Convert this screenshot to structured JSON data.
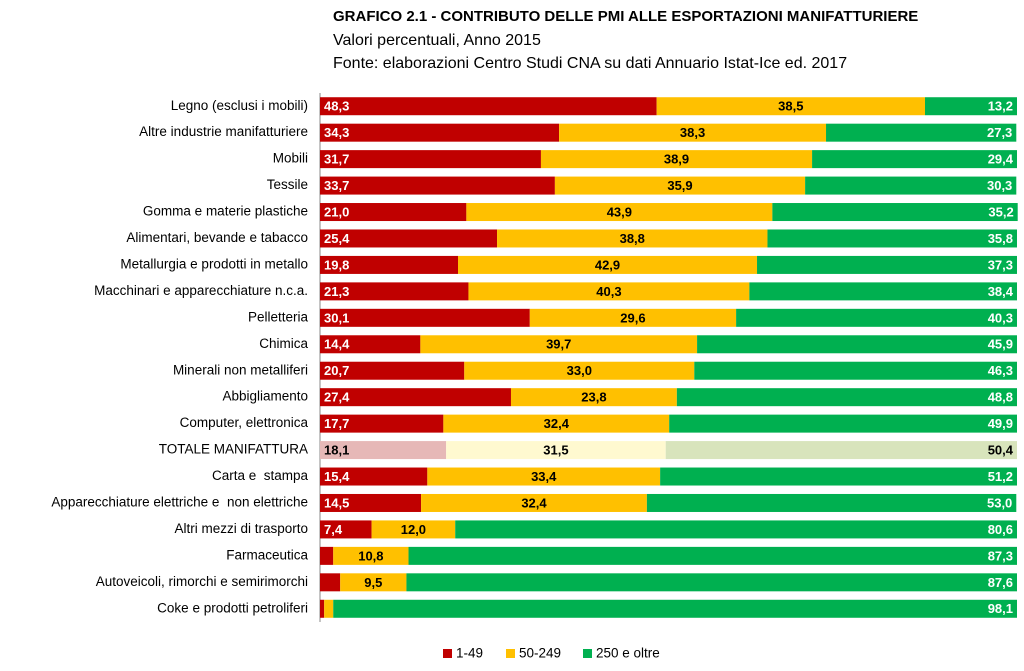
{
  "chart_data": {
    "type": "stacked-bar-horizontal",
    "title": "GRAFICO 2.1 - CONTRIBUTO DELLE PMI ALLE ESPORTAZIONI MANIFATTURIERE",
    "subtitle": "Valori percentuali, Anno 2015",
    "source": "Fonte: elaborazioni Centro Studi CNA su dati Annuario Istat-Ice ed. 2017",
    "categories": [
      "Legno (esclusi i mobili)",
      "Altre industrie manifatturiere",
      "Mobili",
      "Tessile",
      "Gomma e materie plastiche",
      "Alimentari, bevande e tabacco",
      "Metallurgia e prodotti in metallo",
      "Macchinari e apparecchiature n.c.a.",
      "Pelletteria",
      "Chimica",
      "Minerali non metalliferi",
      "Abbigliamento",
      "Computer, elettronica",
      "TOTALE MANIFATTURA",
      "Carta e  stampa",
      "Apparecchiature elettriche e  non elettriche",
      "Altri mezzi di trasporto",
      "Farmaceutica",
      "Autoveicoli, rimorchi e semirimorchi",
      "Coke e prodotti petroliferi"
    ],
    "xlim": [
      0,
      100
    ],
    "highlight": 13,
    "legend": "bottom",
    "series": [
      {
        "name": "1-49",
        "color": "#c00000",
        "highlight_color": "#e6b8b7",
        "label_color": "#ffffff",
        "values": [
          48.3,
          34.3,
          31.7,
          33.7,
          21.0,
          25.4,
          19.8,
          21.3,
          30.1,
          14.4,
          20.7,
          27.4,
          17.7,
          18.1,
          15.4,
          14.5,
          7.4,
          1.9,
          2.9,
          0.6
        ],
        "value_labels": [
          "48,3",
          "34,3",
          "31,7",
          "33,7",
          "21,0",
          "25,4",
          "19,8",
          "21,3",
          "30,1",
          "14,4",
          "20,7",
          "27,4",
          "17,7",
          "18,1",
          "15,4",
          "14,5",
          "7,4",
          null,
          null,
          null
        ]
      },
      {
        "name": "50-249",
        "color": "#ffc000",
        "highlight_color": "#fff9d0",
        "label_color": "#000000",
        "values": [
          38.5,
          38.3,
          38.9,
          35.9,
          43.9,
          38.8,
          42.9,
          40.3,
          29.6,
          39.7,
          33.0,
          23.8,
          32.4,
          31.5,
          33.4,
          32.4,
          12.0,
          10.8,
          9.5,
          1.3
        ],
        "value_labels": [
          "38,5",
          "38,3",
          "38,9",
          "35,9",
          "43,9",
          "38,8",
          "42,9",
          "40,3",
          "29,6",
          "39,7",
          "33,0",
          "23,8",
          "32,4",
          "31,5",
          "33,4",
          "32,4",
          "12,0",
          "10,8",
          "9,5",
          null
        ]
      },
      {
        "name": "250 e oltre",
        "color": "#00b050",
        "highlight_color": "#d8e4bc",
        "label_color": "#ffffff",
        "values": [
          13.2,
          27.3,
          29.4,
          30.3,
          35.2,
          35.8,
          37.3,
          38.4,
          40.3,
          45.9,
          46.3,
          48.8,
          49.9,
          50.4,
          51.2,
          53.0,
          80.6,
          87.3,
          87.6,
          98.1
        ],
        "value_labels": [
          "13,2",
          "27,3",
          "29,4",
          "30,3",
          "35,2",
          "35,8",
          "37,3",
          "38,4",
          "40,3",
          "45,9",
          "46,3",
          "48,8",
          "49,9",
          "50,4",
          "51,2",
          "53,0",
          "80,6",
          "87,3",
          "87,6",
          "98,1"
        ]
      }
    ]
  }
}
